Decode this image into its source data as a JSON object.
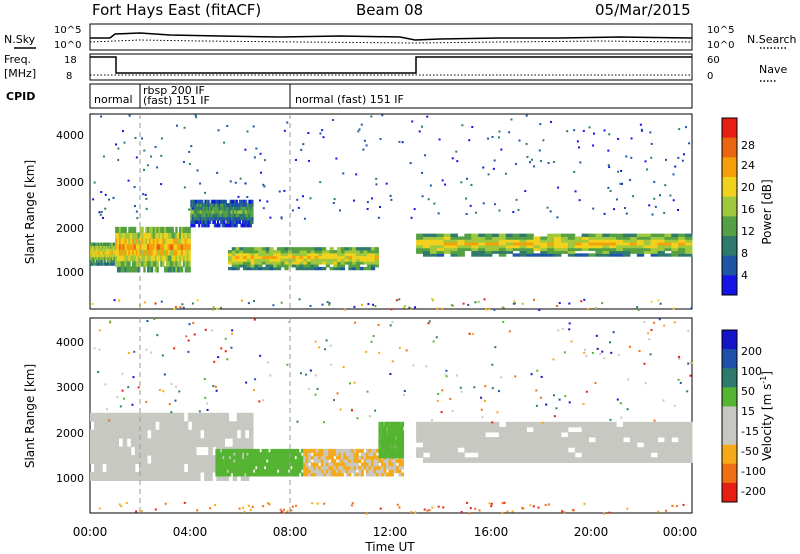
{
  "header": {
    "station": "Fort Hays East (fitACF)",
    "beam": "Beam 08",
    "date": "05/Mar/2015"
  },
  "top_panels": {
    "nsky_label": "N.Sky",
    "nsearch_label": "N.Search",
    "noise_ticks": [
      "10^5",
      "10^0"
    ],
    "noise_ticks_right": [
      "10^5",
      "10^0"
    ],
    "freq_label_1": "Freq.",
    "freq_label_2": "[MHz]",
    "freq_ticks": [
      "18",
      "8"
    ],
    "nave_label": "Nave",
    "nave_ticks": [
      "60",
      "0"
    ],
    "cpid_label": "CPID",
    "cpid_segments": [
      {
        "label": "normal",
        "start": 0.0
      },
      {
        "label": "rbsp 200 IF",
        "start": 1.0
      },
      {
        "label": "(fast) 151 IF",
        "start": 1.0
      },
      {
        "label": "normal (fast) 151 IF",
        "start": 8.0
      }
    ]
  },
  "colors": {
    "power": [
      "#1414e6",
      "#1e55a5",
      "#2f7a6d",
      "#55a045",
      "#a0c83c",
      "#f0d21e",
      "#f5a00a",
      "#eb640f",
      "#e61e14"
    ],
    "velocity": [
      "#e61e14",
      "#f06e14",
      "#f5aa19",
      "#c8c8c3",
      "#c8c8c3",
      "#55b432",
      "#2f7a6d",
      "#1e50aa",
      "#1414c8"
    ]
  },
  "power_panel": {
    "ylabel": "Slant Range [km]",
    "yticks": [
      "4000",
      "3000",
      "2000",
      "1000"
    ],
    "colorbar_label": "Power [dB]",
    "colorbar_ticks": [
      "28",
      "24",
      "20",
      "16",
      "12",
      "8",
      "4"
    ]
  },
  "velocity_panel": {
    "ylabel": "Slant Range [km]",
    "yticks": [
      "4000",
      "3000",
      "2000",
      "1000"
    ],
    "colorbar_label": "Velocity [m s-1]",
    "colorbar_label_main": "Velocity [m s",
    "colorbar_label_sup": "-1",
    "colorbar_label_end": "]",
    "colorbar_ticks": [
      "200",
      "100",
      "50",
      "15",
      "-15",
      "-50",
      "-100",
      "-200"
    ]
  },
  "xaxis": {
    "label": "Time UT",
    "ticks": [
      "00:00",
      "04:00",
      "08:00",
      "12:00",
      "16:00",
      "20:00",
      "00:00"
    ]
  },
  "chart_data": {
    "type": "heatmap",
    "title": "Fort Hays East (fitACF) Beam 08 05/Mar/2015",
    "xlabel": "Time UT",
    "xlim_hours": [
      0,
      24
    ],
    "ylabel": "Slant Range [km]",
    "ylim_km": [
      180,
      4500
    ],
    "panels": [
      {
        "name": "Power [dB]",
        "colorbar": [
          4,
          8,
          12,
          16,
          20,
          24,
          28
        ],
        "echo_bands": [
          {
            "t_start": 0.0,
            "t_end": 1.0,
            "range_km": [
              1150,
              1650
            ],
            "power_db": 20
          },
          {
            "t_start": 1.0,
            "t_end": 4.0,
            "range_km": [
              1000,
              2000
            ],
            "power_db": 22
          },
          {
            "t_start": 4.0,
            "t_end": 6.5,
            "range_km": [
              2000,
              2600
            ],
            "power_db": 14
          },
          {
            "t_start": 5.5,
            "t_end": 11.5,
            "range_km": [
              1050,
              1550
            ],
            "power_db": 20
          },
          {
            "t_start": 13.0,
            "t_end": 24.0,
            "range_km": [
              1350,
              1850
            ],
            "power_db": 20
          }
        ]
      },
      {
        "name": "Velocity [m s-1]",
        "colorbar": [
          -200,
          -100,
          -50,
          -15,
          15,
          50,
          100,
          200
        ],
        "echo_bands": [
          {
            "t_start": 0.0,
            "t_end": 6.5,
            "range_km": [
              900,
              2400
            ],
            "velocity": 0
          },
          {
            "t_start": 5.0,
            "t_end": 8.5,
            "range_km": [
              1000,
              1600
            ],
            "velocity": 40
          },
          {
            "t_start": 8.5,
            "t_end": 12.5,
            "range_km": [
              1000,
              1600
            ],
            "velocity": -50
          },
          {
            "t_start": 11.5,
            "t_end": 12.5,
            "range_km": [
              1400,
              2200
            ],
            "velocity": 40
          },
          {
            "t_start": 13.0,
            "t_end": 24.0,
            "range_km": [
              1300,
              2200
            ],
            "velocity": 0
          }
        ]
      }
    ],
    "frequency_mhz": [
      {
        "t_start": 0.0,
        "t_end": 1.0,
        "value": 16.5
      },
      {
        "t_start": 1.0,
        "t_end": 13.0,
        "value": 9.5
      },
      {
        "t_start": 13.0,
        "t_end": 24.0,
        "value": 16.5
      }
    ]
  }
}
